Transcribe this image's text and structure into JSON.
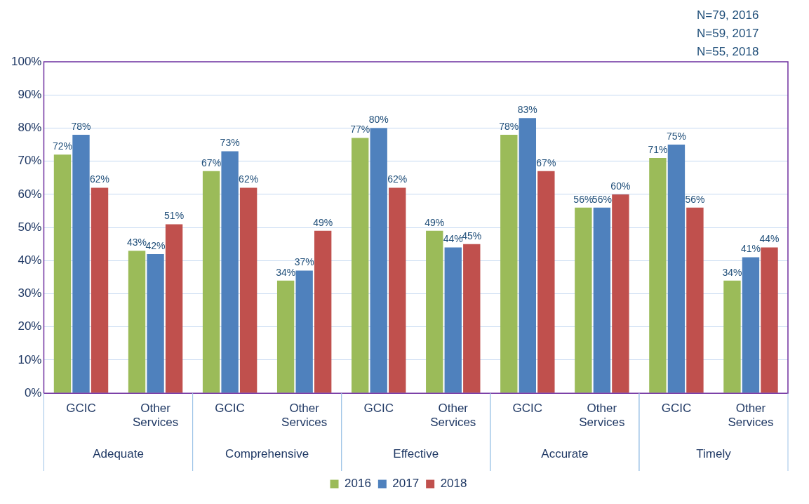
{
  "chart_data": {
    "type": "bar",
    "categories": [
      "GCIC",
      "Other Services",
      "GCIC",
      "Other Services",
      "GCIC",
      "Other Services",
      "GCIC",
      "Other Services",
      "GCIC",
      "Other Services"
    ],
    "series": [
      {
        "name": "2016",
        "color": "#9bbb59",
        "values": [
          72,
          43,
          67,
          34,
          77,
          49,
          78,
          56,
          71,
          34
        ],
        "value_labels": [
          "72%",
          "43%",
          "67%",
          "34%",
          "77%",
          "49%",
          "78%",
          "56%",
          "71%",
          "34%"
        ]
      },
      {
        "name": "2017",
        "color": "#4f81bd",
        "values": [
          78,
          42,
          73,
          37,
          80,
          44,
          83,
          56,
          75,
          41
        ],
        "value_labels": [
          "78%",
          "42%",
          "73%",
          "37%",
          "80%",
          "44%",
          "83%",
          "56%",
          "75%",
          "41%"
        ]
      },
      {
        "name": "2018",
        "color": "#c0504d",
        "values": [
          62,
          51,
          62,
          49,
          62,
          45,
          67,
          60,
          56,
          44
        ],
        "value_labels": [
          "62%",
          "51%",
          "62%",
          "49%",
          "62%",
          "45%",
          "67%",
          "60%",
          "56%",
          "44%"
        ]
      }
    ],
    "annotations": [
      "N=79, 2016",
      "N=59, 2017",
      "N=55, 2018",
      "Adequate",
      "Comprehensive",
      "Effective",
      "Accurate",
      "Timely"
    ],
    "ylim": [
      0,
      100
    ],
    "yticks": [
      {
        "value": 0,
        "label": "0%"
      },
      {
        "value": 10,
        "label": "10%"
      },
      {
        "value": 20,
        "label": "20%"
      },
      {
        "value": 30,
        "label": "30%"
      },
      {
        "value": 40,
        "label": "40%"
      },
      {
        "value": 50,
        "label": "50%"
      },
      {
        "value": 60,
        "label": "60%"
      },
      {
        "value": 70,
        "label": "70%"
      },
      {
        "value": 80,
        "label": "80%"
      },
      {
        "value": 90,
        "label": "90%"
      },
      {
        "value": 100,
        "label": "100%"
      }
    ],
    "grid": "y",
    "legend": "bottom"
  }
}
